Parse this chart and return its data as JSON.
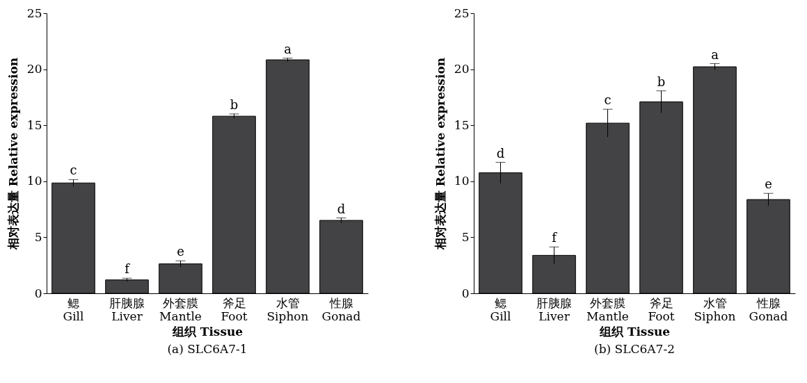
{
  "chart_data": [
    {
      "type": "bar",
      "title": "(a) SLC6A7-1",
      "xlabel": "组织 Tissue",
      "ylabel": "相对表达量 Relative expression",
      "categories": [
        "鳃\nGill",
        "肝胰腺\nLiver",
        "外套膜\nMantle",
        "斧足\nFoot",
        "水管\nSiphon",
        "性腺\nGonad"
      ],
      "values": [
        9.85,
        1.2,
        2.63,
        15.81,
        20.84,
        6.51
      ],
      "errors": [
        0.3,
        0.15,
        0.27,
        0.2,
        0.15,
        0.22
      ],
      "color": "#434345",
      "ylim": [
        0,
        25
      ],
      "yticks": [
        0,
        5,
        10,
        15,
        20,
        25
      ],
      "grid": false,
      "annotations": [
        {
          "text": "c",
          "x": "鳃\nGill",
          "y": 10.15
        },
        {
          "text": "f",
          "x": "肝胰腺\nLiver",
          "y": 1.35
        },
        {
          "text": "e",
          "x": "外套膜\nMantle",
          "y": 2.9
        },
        {
          "text": "b",
          "x": "斧足\nFoot",
          "y": 16.01
        },
        {
          "text": "a",
          "x": "水管\nSiphon",
          "y": 20.99
        },
        {
          "text": "d",
          "x": "性腺\nGonad",
          "y": 6.73
        }
      ]
    },
    {
      "type": "bar",
      "title": "(b) SLC6A7-2",
      "xlabel": "组织 Tissue",
      "ylabel": "相对表达量 Relative expression",
      "categories": [
        "鳃\nGill",
        "肝胰腺\nLiver",
        "外套膜\nMantle",
        "斧足\nFoot",
        "水管\nSiphon",
        "性腺\nGonad"
      ],
      "values": [
        10.76,
        3.39,
        15.19,
        17.09,
        20.22,
        8.37
      ],
      "errors": [
        0.93,
        0.75,
        1.24,
        0.98,
        0.28,
        0.55
      ],
      "color": "#434345",
      "ylim": [
        0,
        25
      ],
      "yticks": [
        0,
        5,
        10,
        15,
        20,
        25
      ],
      "grid": false,
      "annotations": [
        {
          "text": "d",
          "x": "鳃\nGill",
          "y": 11.69
        },
        {
          "text": "f",
          "x": "肝胰腺\nLiver",
          "y": 4.14
        },
        {
          "text": "c",
          "x": "外套膜\nMantle",
          "y": 16.43
        },
        {
          "text": "b",
          "x": "斧足\nFoot",
          "y": 18.07
        },
        {
          "text": "a",
          "x": "水管\nSiphon",
          "y": 20.5
        },
        {
          "text": "e",
          "x": "性腺\nGonad",
          "y": 8.92
        }
      ]
    }
  ]
}
